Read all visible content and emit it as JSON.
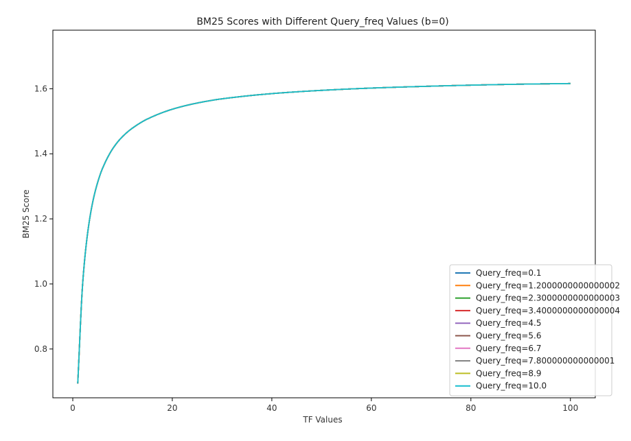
{
  "chart_data": {
    "type": "line",
    "title": "BM25 Scores with Different Query_freq Values (b=0)",
    "xlabel": "TF Values",
    "ylabel": "BM25 Score",
    "xlim": [
      -4.0,
      105.0
    ],
    "ylim": [
      0.65,
      1.78
    ],
    "xticks": [
      0,
      20,
      40,
      60,
      80,
      100
    ],
    "yticks": [
      0.8,
      1.0,
      1.2,
      1.4,
      1.6
    ],
    "ytick_labels": [
      "0.8",
      "1.0",
      "1.2",
      "1.4",
      "1.6"
    ],
    "grid": false,
    "legend_position": "lower-right",
    "x": [
      1,
      2,
      3,
      4,
      5,
      6,
      8,
      10,
      12,
      15,
      20,
      25,
      30,
      40,
      50,
      60,
      70,
      80,
      90,
      100
    ],
    "y_values": [
      0.694,
      1.004,
      1.158,
      1.251,
      1.312,
      1.356,
      1.415,
      1.453,
      1.479,
      1.507,
      1.537,
      1.556,
      1.569,
      1.585,
      1.595,
      1.602,
      1.607,
      1.611,
      1.614,
      1.616
    ],
    "series": [
      {
        "name": "Query_freq=0.1",
        "color": "#1f77b4"
      },
      {
        "name": "Query_freq=1.2000000000000002",
        "color": "#ff7f0e"
      },
      {
        "name": "Query_freq=2.3000000000000003",
        "color": "#2ca02c"
      },
      {
        "name": "Query_freq=3.4000000000000004",
        "color": "#d62728"
      },
      {
        "name": "Query_freq=4.5",
        "color": "#9467bd"
      },
      {
        "name": "Query_freq=5.6",
        "color": "#8c564b"
      },
      {
        "name": "Query_freq=6.7",
        "color": "#e377c2"
      },
      {
        "name": "Query_freq=7.800000000000001",
        "color": "#7f7f7f"
      },
      {
        "name": "Query_freq=8.9",
        "color": "#bcbd22"
      },
      {
        "name": "Query_freq=10.0",
        "color": "#17becf"
      }
    ]
  }
}
